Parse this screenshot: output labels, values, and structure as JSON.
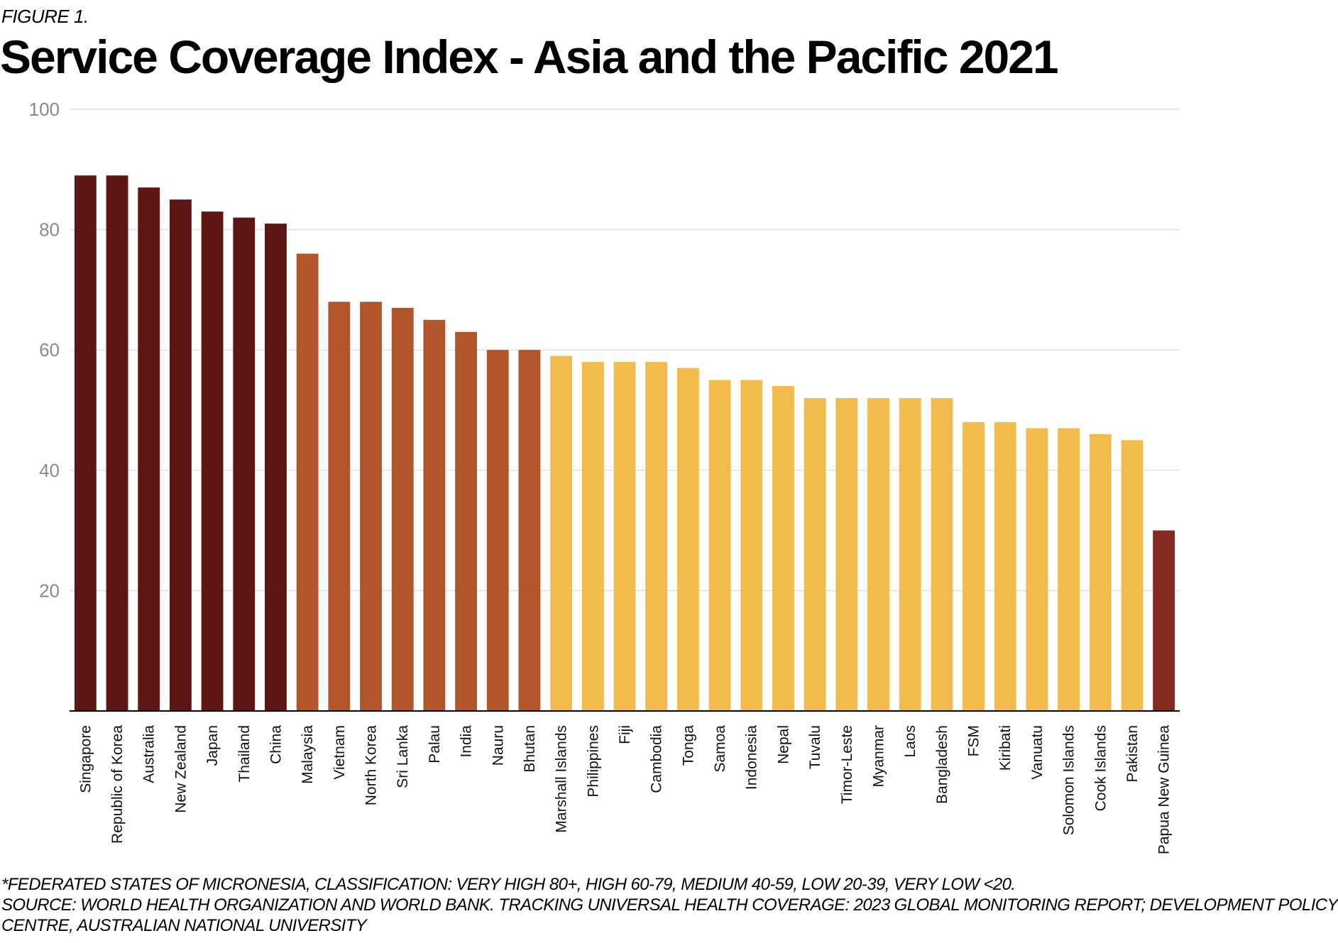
{
  "figure_label": "FIGURE 1.",
  "title": "Service Coverage Index - Asia and the Pacific 2021",
  "footnotes": [
    "*FEDERATED STATES OF MICRONESIA, CLASSIFICATION: VERY HIGH 80+, HIGH 60-79, MEDIUM 40-59, LOW 20-39, VERY LOW <20.",
    "SOURCE: WORLD HEALTH ORGANIZATION AND WORLD BANK. TRACKING UNIVERSAL HEALTH COVERAGE: 2023 GLOBAL MONITORING REPORT; DEVELOPMENT POLICY",
    "CENTRE, AUSTRALIAN NATIONAL UNIVERSITY"
  ],
  "colors": {
    "very_high": "#5e1612",
    "high": "#b0562a",
    "medium": "#f2bb4b",
    "low": "#852a21",
    "grid": "#dcdcdc",
    "axis": "#000000",
    "tick_label": "#8a8a8a"
  },
  "chart_data": {
    "type": "bar",
    "title": "Service Coverage Index - Asia and the Pacific 2021",
    "xlabel": "",
    "ylabel": "",
    "ylim": [
      0,
      100
    ],
    "yticks": [
      20,
      40,
      60,
      80,
      100
    ],
    "grid": true,
    "legend": "none",
    "categories": [
      "Singapore",
      "Republic of Korea",
      "Australia",
      "New Zealand",
      "Japan",
      "Thailand",
      "China",
      "Malaysia",
      "Vietnam",
      "North Korea",
      "Sri Lanka",
      "Palau",
      "India",
      "Nauru",
      "Bhutan",
      "Marshall Islands",
      "Philippines",
      "Fiji",
      "Cambodia",
      "Tonga",
      "Samoa",
      "Indonesia",
      "Nepal",
      "Tuvalu",
      "Timor-Leste",
      "Myanmar",
      "Laos",
      "Bangladesh",
      "FSM",
      "Kiribati",
      "Vanuatu",
      "Solomon Islands",
      "Cook Islands",
      "Pakistan",
      "Papua New Guinea"
    ],
    "values": [
      89,
      89,
      87,
      85,
      83,
      82,
      81,
      76,
      68,
      68,
      67,
      65,
      63,
      60,
      60,
      59,
      58,
      58,
      58,
      57,
      55,
      55,
      54,
      52,
      52,
      52,
      52,
      52,
      48,
      48,
      47,
      47,
      46,
      45,
      30
    ],
    "classes": [
      "very_high",
      "very_high",
      "very_high",
      "very_high",
      "very_high",
      "very_high",
      "very_high",
      "high",
      "high",
      "high",
      "high",
      "high",
      "high",
      "high",
      "high",
      "medium",
      "medium",
      "medium",
      "medium",
      "medium",
      "medium",
      "medium",
      "medium",
      "medium",
      "medium",
      "medium",
      "medium",
      "medium",
      "medium",
      "medium",
      "medium",
      "medium",
      "medium",
      "medium",
      "low"
    ]
  }
}
